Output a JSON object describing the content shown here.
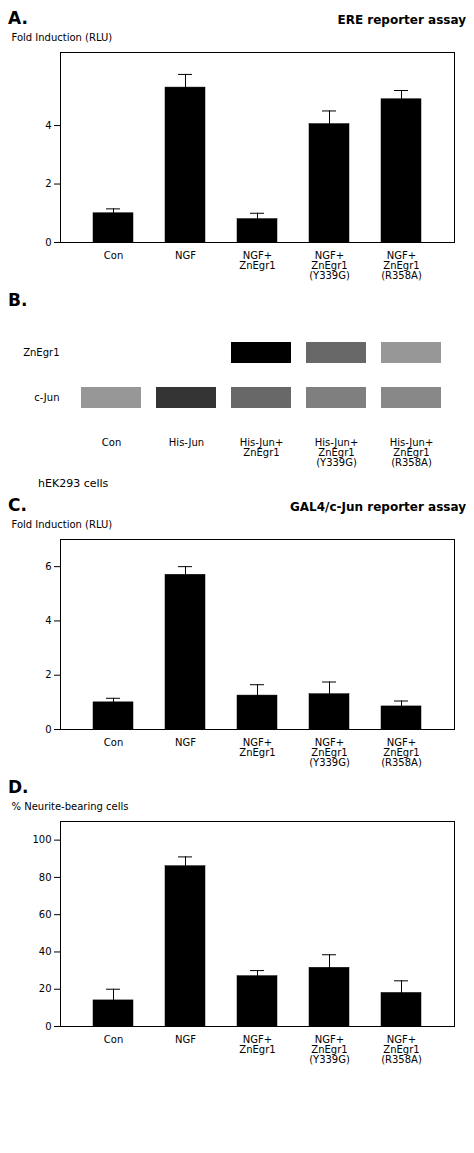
{
  "chart_data": [
    {
      "type": "bar",
      "title": "ERE reporter assay",
      "annotations": [
        "A."
      ],
      "ylabel": "Fold Induction (RLU)",
      "categories": [
        "Con",
        "NGF",
        "NGF+\nZnEgr1",
        "NGF+\nZnEgr1\n(Y339G)",
        "NGF+\nZnEgr1\n(R358A)"
      ],
      "values": [
        1.0,
        5.3,
        0.8,
        4.05,
        4.9
      ],
      "errors": [
        0.15,
        0.45,
        0.2,
        0.45,
        0.3
      ],
      "color": "#000000",
      "ylim": [
        0,
        6.5
      ],
      "yticks": [
        0,
        2,
        4
      ]
    },
    {
      "type": "heatmap",
      "annotations": [
        "B."
      ],
      "subtitle": "hEK293 cells",
      "categories": [
        "Con",
        "His-Jun",
        "His-Jun+\nZnEgr1",
        "His-Jun+\nZnEgr1\n(Y339G)",
        "His-Jun+\nZnEgr1\n(R358A)"
      ],
      "rows": [
        "ZnEgr1",
        "c-Jun"
      ],
      "cells": [
        [
          0.05,
          0.05,
          0.65,
          0.45,
          0.35
        ],
        [
          0.35,
          0.55,
          0.45,
          0.4,
          0.38
        ]
      ]
    },
    {
      "type": "bar",
      "title": "GAL4/c-Jun reporter assay",
      "annotations": [
        "C."
      ],
      "ylabel": "Fold Induction (RLU)",
      "categories": [
        "Con",
        "NGF",
        "NGF+\nZnEgr1",
        "NGF+\nZnEgr1\n(Y339G)",
        "NGF+\nZnEgr1\n(R358A)"
      ],
      "values": [
        1.0,
        5.7,
        1.25,
        1.3,
        0.85
      ],
      "errors": [
        0.15,
        0.3,
        0.4,
        0.45,
        0.2
      ],
      "color": "#000000",
      "ylim": [
        0,
        7.0
      ],
      "yticks": [
        0,
        2,
        4,
        6
      ]
    },
    {
      "type": "bar",
      "annotations": [
        "D."
      ],
      "ylabel": "% Neurite-bearing cells",
      "categories": [
        "Con",
        "NGF",
        "NGF+\nZnEgr1",
        "NGF+\nZnEgr1\n(Y339G)",
        "NGF+\nZnEgr1\n(R358A)"
      ],
      "values": [
        14.0,
        86.0,
        27.0,
        31.5,
        18.0
      ],
      "errors": [
        6.0,
        5.0,
        3.0,
        7.0,
        6.5
      ],
      "color": "#000000",
      "ylim": [
        0,
        110
      ],
      "yticks": [
        0,
        20,
        40,
        60,
        80,
        100
      ]
    }
  ]
}
